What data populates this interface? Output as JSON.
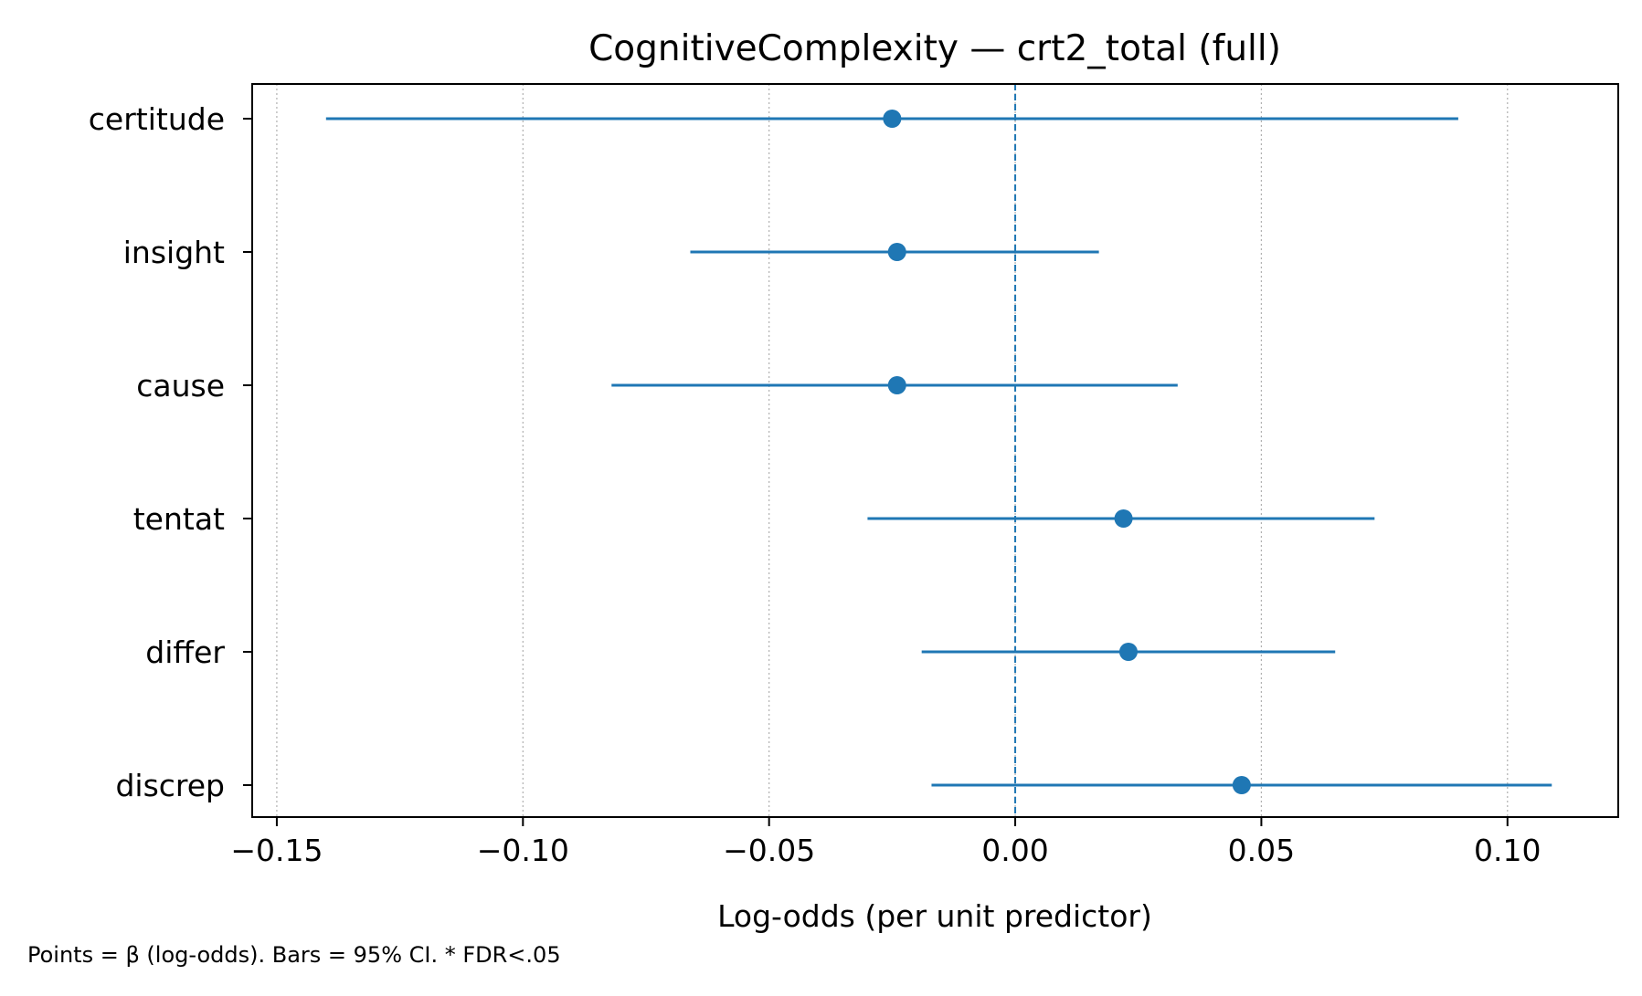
{
  "chart_data": {
    "type": "forest",
    "title": "CognitiveComplexity — crt2_total (full)",
    "xlabel": "Log-odds (per unit predictor)",
    "ylabel": "",
    "xlim": [
      -0.155,
      0.1225
    ],
    "xticks": [
      -0.15,
      -0.1,
      -0.05,
      0.0,
      0.05,
      0.1
    ],
    "xtick_labels": [
      "−0.15",
      "−0.10",
      "−0.05",
      "0.00",
      "0.05",
      "0.10"
    ],
    "reference_line": 0,
    "grid": "x dotted",
    "color": "#1f77b4",
    "rows": [
      {
        "label": "certitude",
        "beta": -0.025,
        "ci_low": -0.14,
        "ci_high": 0.09
      },
      {
        "label": "insight",
        "beta": -0.024,
        "ci_low": -0.066,
        "ci_high": 0.017
      },
      {
        "label": "cause",
        "beta": -0.024,
        "ci_low": -0.082,
        "ci_high": 0.033
      },
      {
        "label": "tentat",
        "beta": 0.022,
        "ci_low": -0.03,
        "ci_high": 0.073
      },
      {
        "label": "differ",
        "beta": 0.023,
        "ci_low": -0.019,
        "ci_high": 0.065
      },
      {
        "label": "discrep",
        "beta": 0.046,
        "ci_low": -0.017,
        "ci_high": 0.109
      }
    ]
  },
  "footnote": "Points = β (log-odds). Bars = 95% CI. * FDR<.05"
}
